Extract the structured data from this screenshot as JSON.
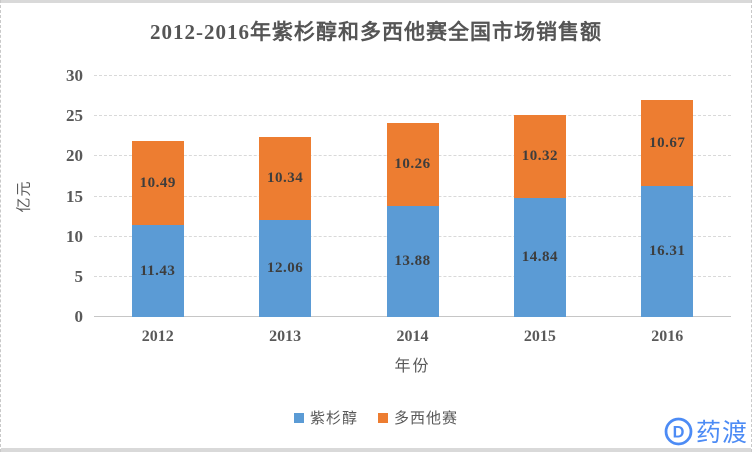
{
  "chart_data": {
    "type": "bar",
    "stacked": true,
    "title": "2012-2016年紫杉醇和多西他赛全国市场销售额",
    "categories": [
      "2012",
      "2013",
      "2014",
      "2015",
      "2016"
    ],
    "series": [
      {
        "name": "紫杉醇",
        "color": "#5B9BD5",
        "values": [
          11.43,
          12.06,
          13.88,
          14.84,
          16.31
        ]
      },
      {
        "name": "多西他赛",
        "color": "#ED7D31",
        "values": [
          10.49,
          10.34,
          10.26,
          10.32,
          10.67
        ]
      }
    ],
    "xlabel": "年份",
    "ylabel": "亿元",
    "ylim": [
      0,
      30
    ],
    "ytick_step": 5,
    "value_decimals": 2,
    "grid": true,
    "legend_position": "bottom"
  },
  "logo": {
    "text": "药渡",
    "icon": "circle-d-icon",
    "color": "#4c8bf5"
  }
}
